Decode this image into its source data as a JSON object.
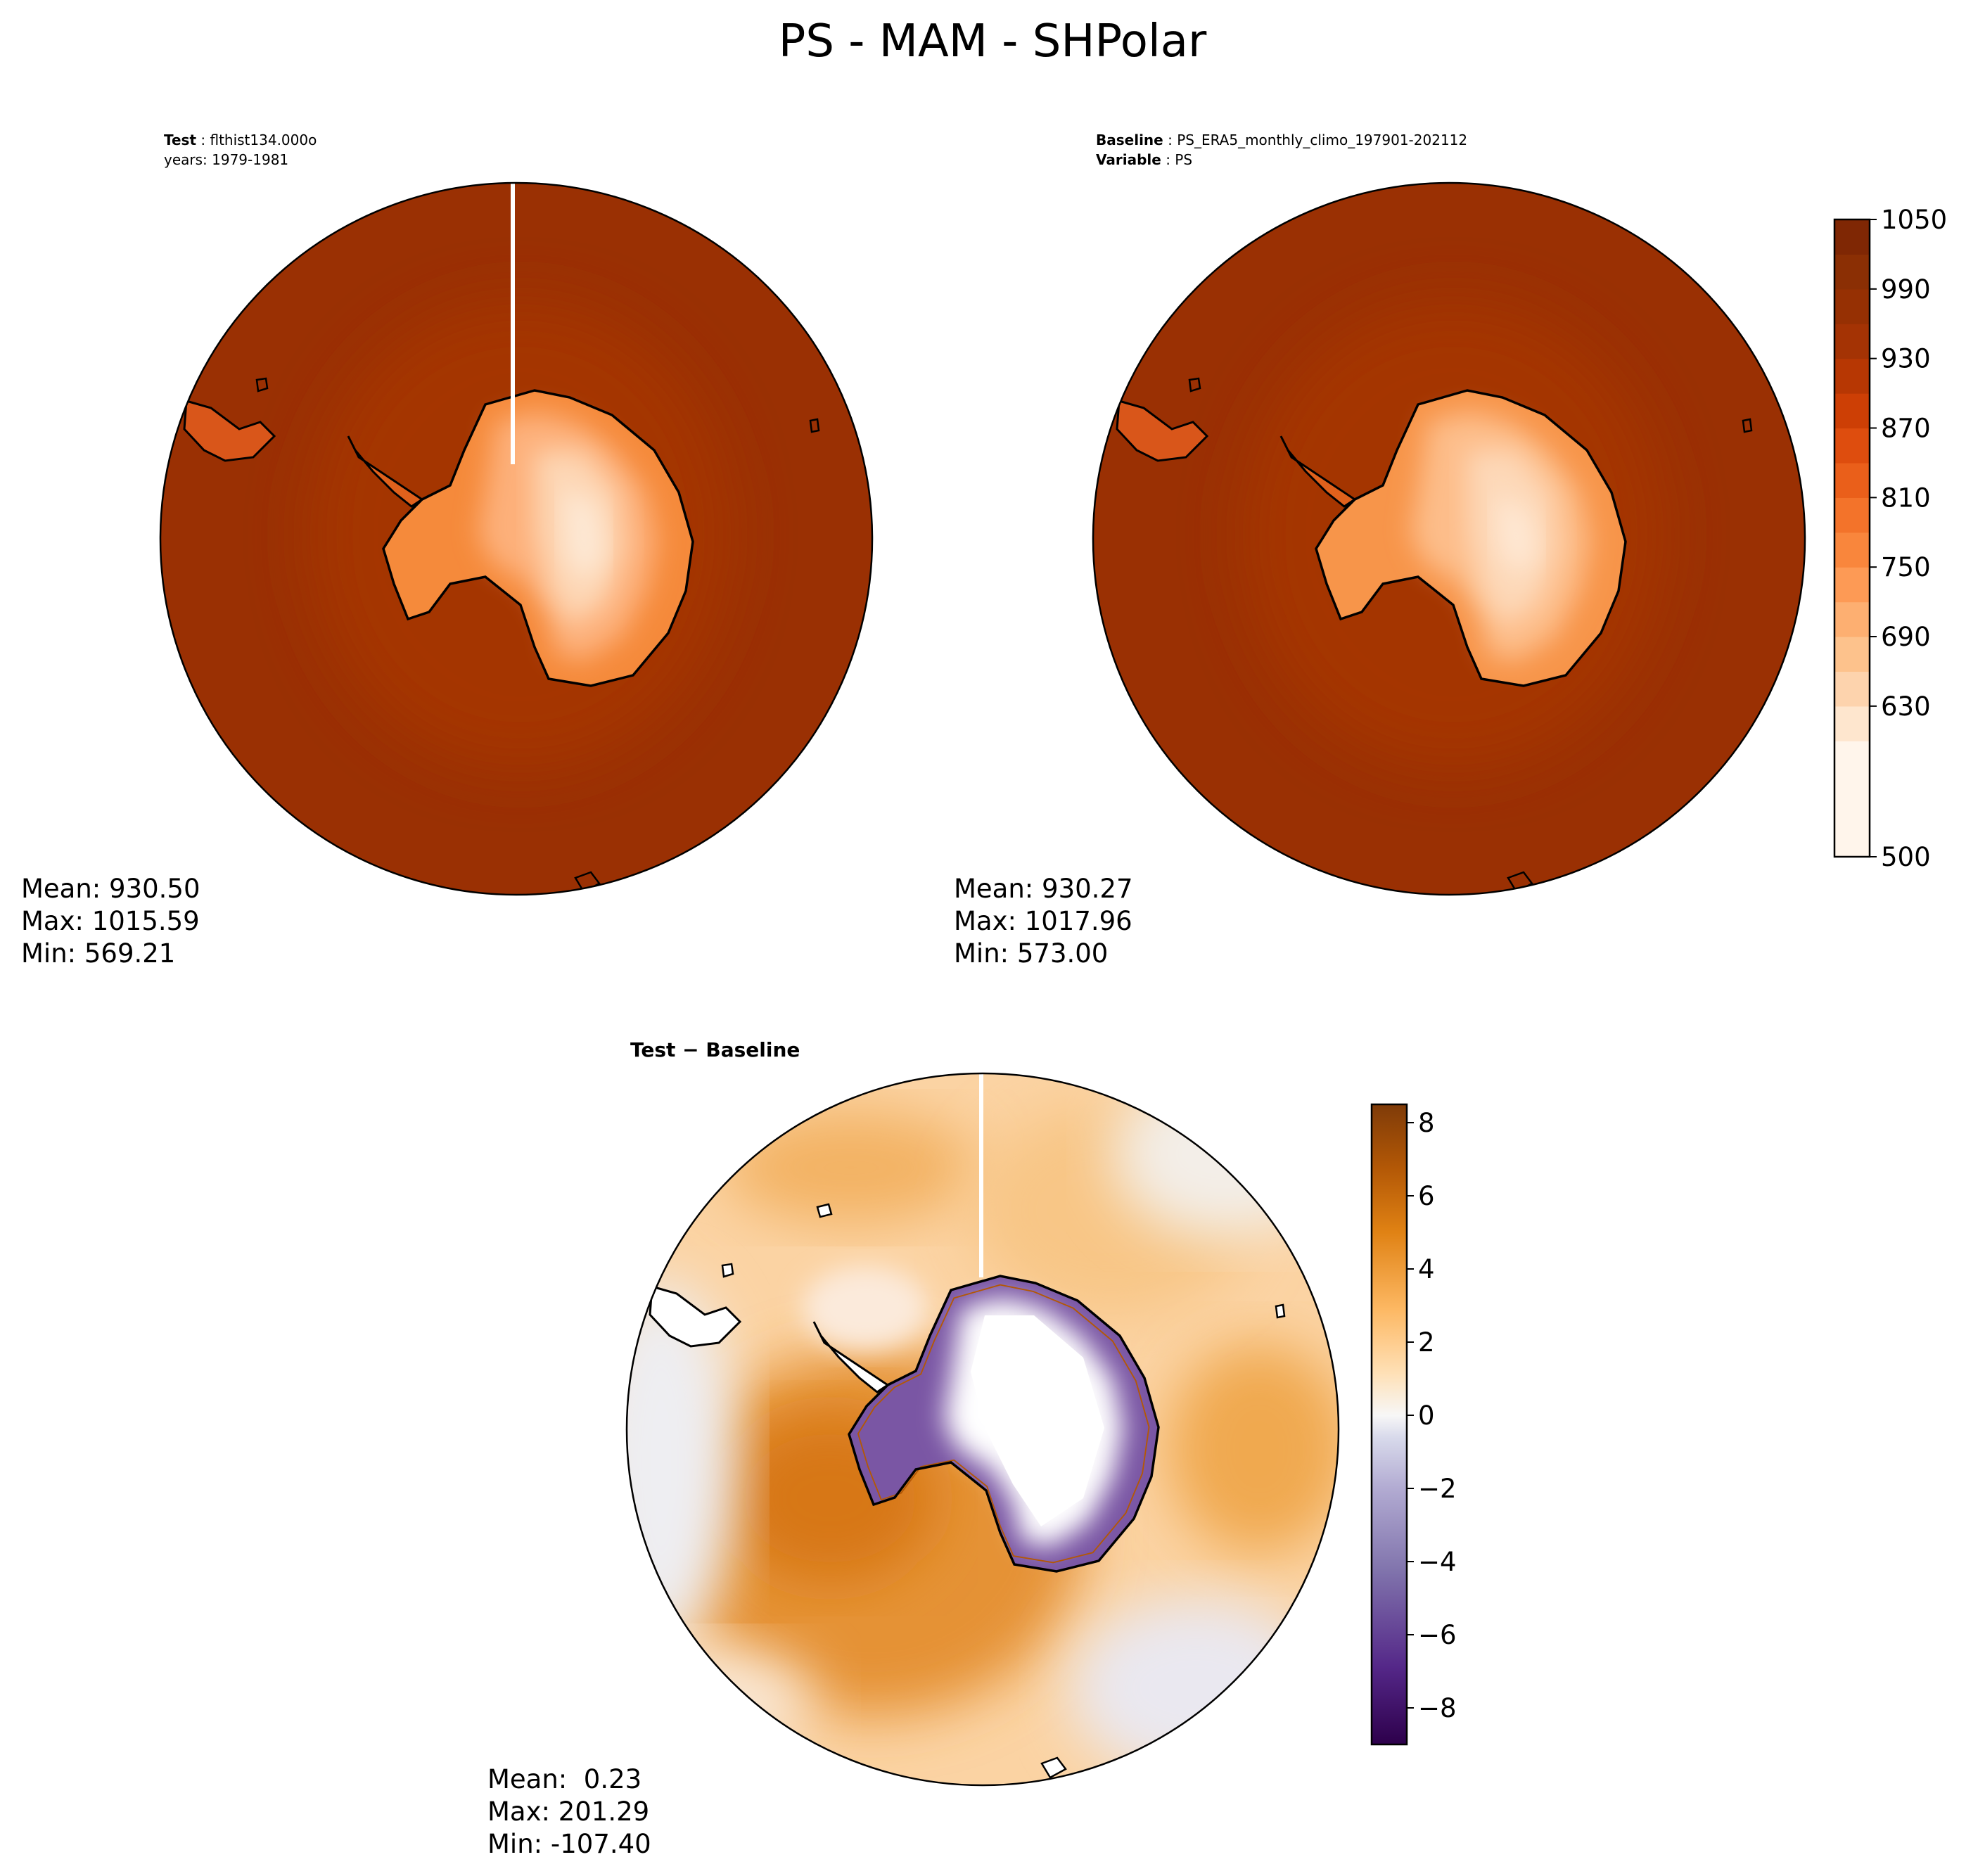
{
  "figure": {
    "title": "PS - MAM - SHPolar"
  },
  "colors": {
    "ring_dark": "#9a3003",
    "ring_mid": "#a43604",
    "ice_light": "#fde0c5",
    "diff_pos_bg": "#f6c38f",
    "diff_neg_ice": "#ffffff",
    "coast": "#000000"
  },
  "chart_data": [
    {
      "type": "heatmap",
      "panel": "test",
      "projection": "south-polar-stereographic",
      "header": {
        "line1_bold": "Test",
        "line1_text": "flthist134.000o",
        "line2_text": "years: 1979-1981"
      },
      "stats": {
        "mean": "Mean: 930.50",
        "max": "Max: 1015.59",
        "min": "Min: 569.21"
      },
      "values": {
        "mean": 930.5,
        "max": 1015.59,
        "min": 569.21
      },
      "colormap": "Oranges",
      "colorbar": "shared-with-baseline"
    },
    {
      "type": "heatmap",
      "panel": "baseline",
      "projection": "south-polar-stereographic",
      "header": {
        "line1_bold": "Baseline",
        "line1_text": "PS_ERA5_monthly_climo_197901-202112",
        "line2_bold": "Variable",
        "line2_text": "PS"
      },
      "stats": {
        "mean": "Mean: 930.27",
        "max": "Max: 1017.96",
        "min": "Min: 573.00"
      },
      "values": {
        "mean": 930.27,
        "max": 1017.96,
        "min": 573.0
      },
      "colormap": "Oranges",
      "colorbar": {
        "range": [
          500,
          1050
        ],
        "ticks": [
          "500",
          "630",
          "690",
          "750",
          "810",
          "870",
          "930",
          "990",
          "1050"
        ],
        "levels": [
          500,
          600,
          630,
          660,
          690,
          720,
          750,
          780,
          810,
          840,
          870,
          900,
          930,
          960,
          990,
          1020,
          1050
        ],
        "colors": [
          "#fff5eb",
          "#fee6ce",
          "#fdd3ad",
          "#fdc28c",
          "#fdaf71",
          "#fd9a55",
          "#f9863c",
          "#f3732a",
          "#ea5f1a",
          "#de4d0e",
          "#cd3f05",
          "#b73703",
          "#a43304",
          "#963003",
          "#8b2f04",
          "#7f2704"
        ]
      }
    },
    {
      "type": "heatmap",
      "panel": "difference",
      "projection": "south-polar-stereographic",
      "header": {
        "title": "Test − Baseline"
      },
      "stats": {
        "mean": "Mean:  0.23",
        "max": "Max: 201.29",
        "min": "Min: -107.40"
      },
      "values": {
        "mean": 0.23,
        "max": 201.29,
        "min": -107.4
      },
      "colormap": "PuOr_r",
      "colorbar": {
        "range": [
          -9,
          8.5
        ],
        "ticks": [
          "−8",
          "−6",
          "−4",
          "−2",
          "0",
          "2",
          "4",
          "6",
          "8"
        ],
        "tick_values": [
          -8,
          -6,
          -4,
          -2,
          0,
          2,
          4,
          6,
          8
        ]
      }
    }
  ]
}
